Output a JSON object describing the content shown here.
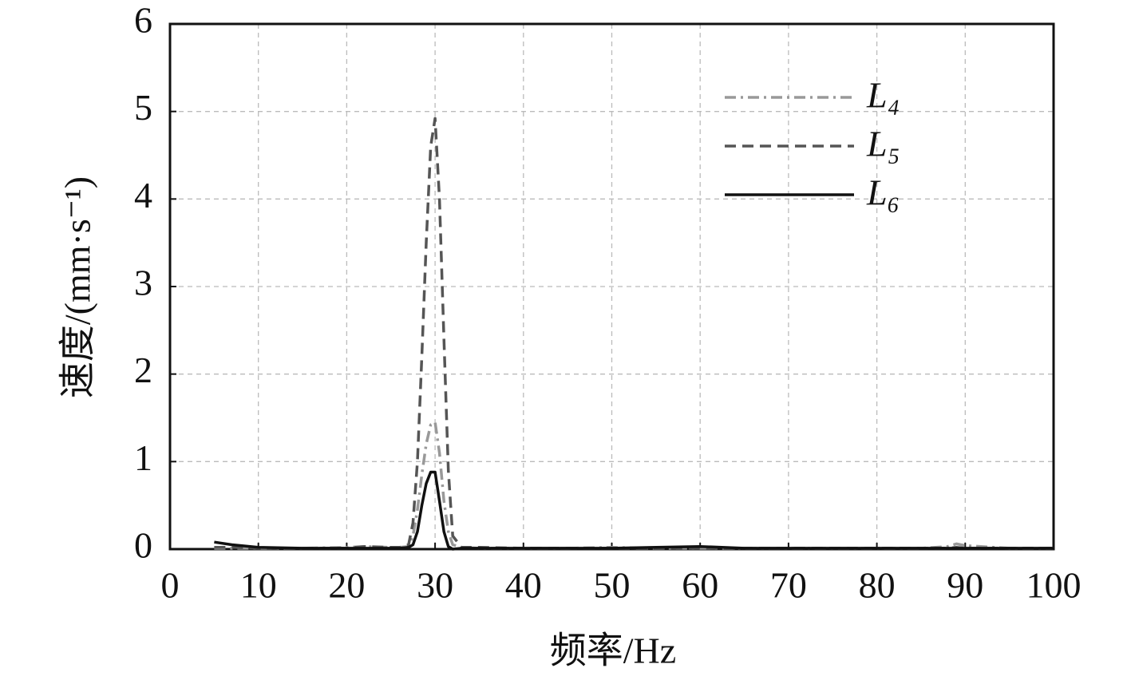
{
  "chart_data": {
    "type": "line",
    "xlabel": "频率/Hz",
    "ylabel": "速度/(mm·s⁻¹)",
    "x": [
      5,
      7,
      10,
      15,
      20,
      22,
      25,
      26,
      27,
      27.5,
      28,
      28.5,
      29,
      29.5,
      30,
      30.5,
      31,
      31.5,
      32,
      33,
      35,
      40,
      45,
      50,
      55,
      60,
      65,
      70,
      75,
      80,
      85,
      88,
      89,
      90,
      95,
      100
    ],
    "series": [
      {
        "name": "L₄",
        "color": "#999999",
        "dash": "dashdot",
        "values": [
          0.01,
          0.01,
          0.01,
          0.01,
          0.02,
          0.03,
          0.02,
          0.02,
          0.03,
          0.15,
          0.45,
          0.85,
          1.2,
          1.42,
          1.45,
          1.1,
          0.55,
          0.2,
          0.05,
          0.02,
          0.01,
          0.01,
          0.01,
          0.02,
          0.01,
          0.01,
          0.01,
          0.01,
          0.01,
          0.01,
          0.01,
          0.03,
          0.06,
          0.04,
          0.01,
          0.01
        ]
      },
      {
        "name": "L₅",
        "color": "#555555",
        "dash": "dashed",
        "values": [
          0.02,
          0.02,
          0.01,
          0.01,
          0.01,
          0.03,
          0.02,
          0.02,
          0.05,
          0.3,
          1.0,
          2.2,
          3.5,
          4.6,
          4.92,
          4.0,
          2.4,
          0.9,
          0.15,
          0.02,
          0.02,
          0.01,
          0.01,
          0.01,
          0.01,
          0.01,
          0.01,
          0.01,
          0.01,
          0.01,
          0.01,
          0.01,
          0.02,
          0.01,
          0.01,
          0.01
        ]
      },
      {
        "name": "L₆",
        "color": "#111111",
        "dash": "solid",
        "values": [
          0.08,
          0.05,
          0.02,
          0.01,
          0.01,
          0.01,
          0.01,
          0.01,
          0.02,
          0.05,
          0.2,
          0.5,
          0.75,
          0.88,
          0.88,
          0.55,
          0.2,
          0.03,
          0.0,
          0.01,
          0.01,
          0.01,
          0.01,
          0.01,
          0.02,
          0.03,
          0.01,
          0.01,
          0.01,
          0.01,
          0.01,
          0.01,
          0.01,
          0.01,
          0.01,
          0.01
        ]
      }
    ],
    "xlim": [
      0,
      100
    ],
    "xticks": [
      0,
      10,
      20,
      30,
      40,
      50,
      60,
      70,
      80,
      90,
      100
    ],
    "ylim": [
      0,
      6
    ],
    "yticks": [
      0,
      1,
      2,
      3,
      4,
      5,
      6
    ],
    "grid": true,
    "legend": "upper-right"
  }
}
